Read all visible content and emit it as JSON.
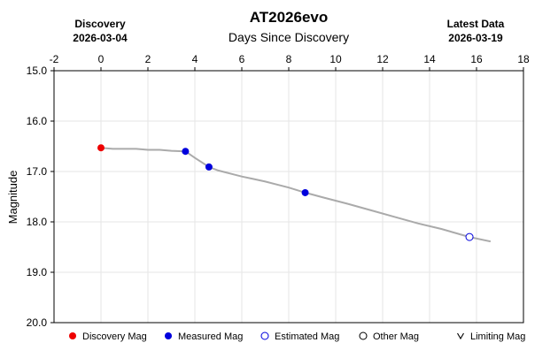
{
  "chart_data": {
    "type": "line",
    "title": "AT2026evo",
    "xlabel": "Days Since Discovery",
    "ylabel": "Magnitude",
    "xlim": [
      -2,
      18
    ],
    "ylim": [
      15.0,
      20.0
    ],
    "y_inverted": true,
    "x_ticks": [
      -2,
      0,
      2,
      4,
      6,
      8,
      10,
      12,
      14,
      16,
      18
    ],
    "y_ticks": [
      15.0,
      16.0,
      17.0,
      18.0,
      19.0,
      20.0
    ],
    "grid": true,
    "discovery_marker": {
      "label": "Discovery",
      "date": "2026-03-04"
    },
    "latest_marker": {
      "label": "Latest Data",
      "date": "2026-03-19"
    },
    "colors": {
      "discovery": "#ee0000",
      "measured": "#0000dd",
      "estimated_edge": "#0000dd",
      "other_edge": "#000000",
      "curve": "#aaaaaa",
      "grid": "#e6e6e6"
    },
    "series": [
      {
        "name": "Discovery Mag",
        "kind": "filled",
        "color": "#ee0000",
        "points": [
          [
            0.0,
            16.53
          ]
        ]
      },
      {
        "name": "Measured Mag",
        "kind": "filled",
        "color": "#0000dd",
        "points": [
          [
            3.6,
            16.6
          ],
          [
            4.6,
            16.91
          ],
          [
            8.7,
            17.42
          ]
        ]
      },
      {
        "name": "Estimated Mag",
        "kind": "open",
        "color": "#0000dd",
        "points": [
          [
            15.7,
            18.3
          ]
        ]
      }
    ],
    "model_curve": [
      [
        0.0,
        16.53
      ],
      [
        0.5,
        16.55
      ],
      [
        1.0,
        16.55
      ],
      [
        1.5,
        16.55
      ],
      [
        2.0,
        16.57
      ],
      [
        2.5,
        16.57
      ],
      [
        3.0,
        16.59
      ],
      [
        3.6,
        16.6
      ],
      [
        4.0,
        16.73
      ],
      [
        4.6,
        16.91
      ],
      [
        5.0,
        16.98
      ],
      [
        5.5,
        17.04
      ],
      [
        6.0,
        17.1
      ],
      [
        6.5,
        17.15
      ],
      [
        7.0,
        17.2
      ],
      [
        7.5,
        17.26
      ],
      [
        8.0,
        17.32
      ],
      [
        8.7,
        17.42
      ],
      [
        9.5,
        17.52
      ],
      [
        10.5,
        17.64
      ],
      [
        11.5,
        17.77
      ],
      [
        12.5,
        17.9
      ],
      [
        13.5,
        18.03
      ],
      [
        14.5,
        18.14
      ],
      [
        15.7,
        18.3
      ],
      [
        16.6,
        18.39
      ]
    ],
    "legend": {
      "placement": "bottom",
      "entries": [
        {
          "label": "Discovery Mag",
          "marker": "filled-circle",
          "color": "#ee0000"
        },
        {
          "label": "Measured Mag",
          "marker": "filled-circle",
          "color": "#0000dd"
        },
        {
          "label": "Estimated Mag",
          "marker": "open-circle",
          "color": "#0000dd"
        },
        {
          "label": "Other Mag",
          "marker": "open-circle",
          "color": "#000000"
        },
        {
          "label": "Limiting Mag",
          "marker": "v",
          "color": "#000000"
        }
      ]
    }
  }
}
